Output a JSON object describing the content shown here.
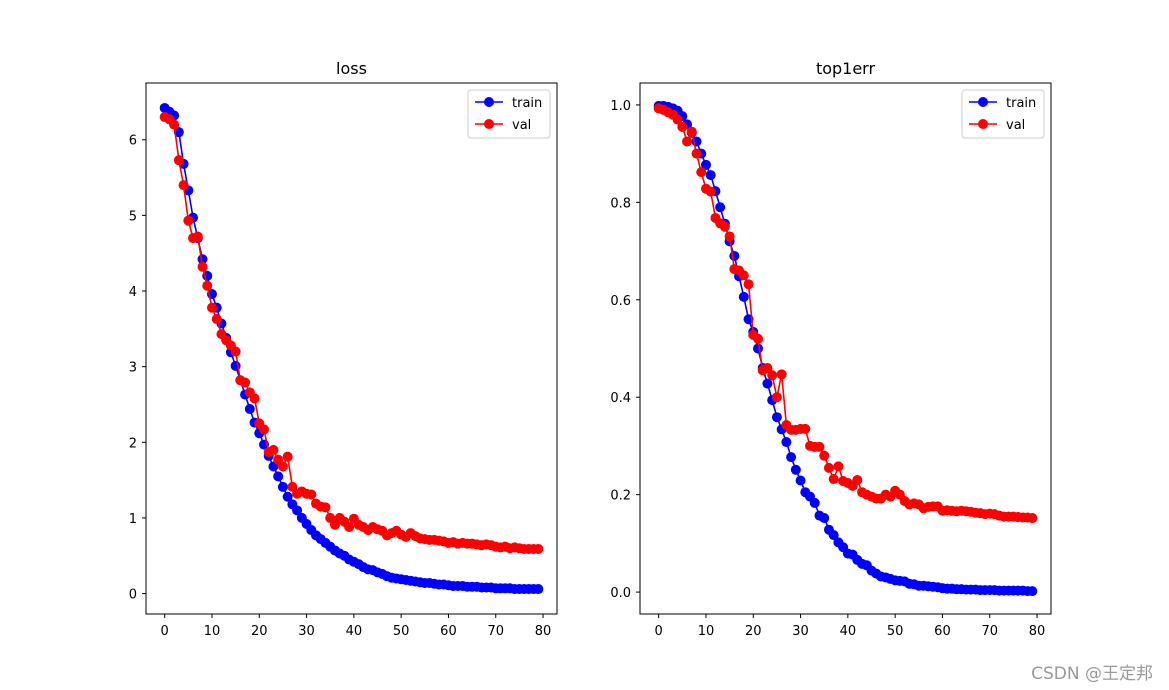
{
  "figure": {
    "watermark": "CSDN @王定邦"
  },
  "colors": {
    "train": "#0000ff",
    "val": "#ff0000",
    "axes": "#000000"
  },
  "chart_data": [
    {
      "type": "line",
      "title": "loss",
      "xlabel": "",
      "ylabel": "",
      "xlim": [
        -3.95,
        82.95
      ],
      "ylim": [
        -0.27,
        6.75
      ],
      "xticks": [
        0,
        10,
        20,
        30,
        40,
        50,
        60,
        70,
        80
      ],
      "yticks": [
        0,
        1,
        2,
        3,
        4,
        5,
        6
      ],
      "legend": {
        "position": "top-right"
      },
      "x_start": 0,
      "series": [
        {
          "name": "train",
          "color": "#0000ff",
          "values": [
            6.42,
            6.37,
            6.32,
            6.1,
            5.68,
            5.33,
            4.97,
            4.7,
            4.42,
            4.2,
            3.96,
            3.78,
            3.57,
            3.38,
            3.19,
            3.01,
            2.82,
            2.63,
            2.44,
            2.26,
            2.12,
            1.97,
            1.82,
            1.68,
            1.55,
            1.41,
            1.28,
            1.18,
            1.1,
            1.0,
            0.92,
            0.84,
            0.77,
            0.72,
            0.67,
            0.62,
            0.57,
            0.53,
            0.5,
            0.45,
            0.42,
            0.39,
            0.35,
            0.32,
            0.31,
            0.28,
            0.26,
            0.23,
            0.21,
            0.2,
            0.19,
            0.18,
            0.17,
            0.16,
            0.15,
            0.14,
            0.14,
            0.13,
            0.12,
            0.12,
            0.11,
            0.1,
            0.1,
            0.1,
            0.09,
            0.09,
            0.09,
            0.08,
            0.08,
            0.08,
            0.07,
            0.07,
            0.07,
            0.07,
            0.06,
            0.06,
            0.06,
            0.06,
            0.06,
            0.06
          ]
        },
        {
          "name": "val",
          "color": "#ff0000",
          "values": [
            6.3,
            6.27,
            6.2,
            5.73,
            5.4,
            4.93,
            4.7,
            4.72,
            4.32,
            4.07,
            3.78,
            3.63,
            3.43,
            3.35,
            3.28,
            3.2,
            2.82,
            2.79,
            2.66,
            2.58,
            2.25,
            2.17,
            1.87,
            1.9,
            1.77,
            1.68,
            1.81,
            1.41,
            1.32,
            1.35,
            1.32,
            1.31,
            1.19,
            1.15,
            1.14,
            1.0,
            0.91,
            1.0,
            0.95,
            0.88,
            0.99,
            0.91,
            0.88,
            0.84,
            0.88,
            0.85,
            0.83,
            0.77,
            0.8,
            0.83,
            0.78,
            0.75,
            0.8,
            0.76,
            0.73,
            0.72,
            0.71,
            0.71,
            0.7,
            0.69,
            0.67,
            0.68,
            0.66,
            0.67,
            0.66,
            0.66,
            0.65,
            0.64,
            0.65,
            0.64,
            0.62,
            0.61,
            0.62,
            0.6,
            0.61,
            0.6,
            0.59,
            0.59,
            0.59,
            0.59
          ]
        }
      ]
    },
    {
      "type": "line",
      "title": "top1err",
      "xlabel": "",
      "ylabel": "",
      "xlim": [
        -3.95,
        82.95
      ],
      "ylim": [
        -0.045,
        1.045
      ],
      "xticks": [
        0,
        10,
        20,
        30,
        40,
        50,
        60,
        70,
        80
      ],
      "yticks": [
        0.0,
        0.2,
        0.4,
        0.6,
        0.8,
        1.0
      ],
      "legend": {
        "position": "top-right"
      },
      "x_start": 0,
      "series": [
        {
          "name": "train",
          "color": "#0000ff",
          "values": [
            0.998,
            0.998,
            0.996,
            0.993,
            0.988,
            0.977,
            0.96,
            0.943,
            0.925,
            0.9,
            0.877,
            0.856,
            0.823,
            0.79,
            0.756,
            0.72,
            0.69,
            0.648,
            0.606,
            0.56,
            0.534,
            0.5,
            0.46,
            0.428,
            0.394,
            0.359,
            0.334,
            0.308,
            0.277,
            0.251,
            0.229,
            0.205,
            0.196,
            0.183,
            0.157,
            0.152,
            0.128,
            0.117,
            0.102,
            0.092,
            0.079,
            0.077,
            0.066,
            0.058,
            0.055,
            0.044,
            0.038,
            0.032,
            0.03,
            0.027,
            0.024,
            0.023,
            0.022,
            0.017,
            0.016,
            0.013,
            0.013,
            0.012,
            0.011,
            0.01,
            0.008,
            0.007,
            0.007,
            0.006,
            0.006,
            0.005,
            0.005,
            0.005,
            0.004,
            0.004,
            0.004,
            0.004,
            0.003,
            0.003,
            0.003,
            0.003,
            0.003,
            0.003,
            0.002,
            0.002
          ]
        },
        {
          "name": "val",
          "color": "#ff0000",
          "values": [
            0.993,
            0.99,
            0.985,
            0.98,
            0.97,
            0.955,
            0.925,
            0.945,
            0.9,
            0.862,
            0.828,
            0.822,
            0.768,
            0.757,
            0.75,
            0.73,
            0.663,
            0.66,
            0.65,
            0.632,
            0.528,
            0.52,
            0.455,
            0.46,
            0.445,
            0.4,
            0.447,
            0.343,
            0.333,
            0.333,
            0.335,
            0.335,
            0.3,
            0.298,
            0.298,
            0.28,
            0.255,
            0.232,
            0.258,
            0.228,
            0.224,
            0.218,
            0.23,
            0.205,
            0.2,
            0.196,
            0.192,
            0.192,
            0.2,
            0.196,
            0.208,
            0.2,
            0.187,
            0.18,
            0.182,
            0.18,
            0.172,
            0.175,
            0.176,
            0.176,
            0.167,
            0.168,
            0.167,
            0.166,
            0.167,
            0.166,
            0.165,
            0.163,
            0.162,
            0.16,
            0.161,
            0.16,
            0.157,
            0.155,
            0.155,
            0.155,
            0.154,
            0.153,
            0.153,
            0.152
          ]
        }
      ]
    }
  ]
}
